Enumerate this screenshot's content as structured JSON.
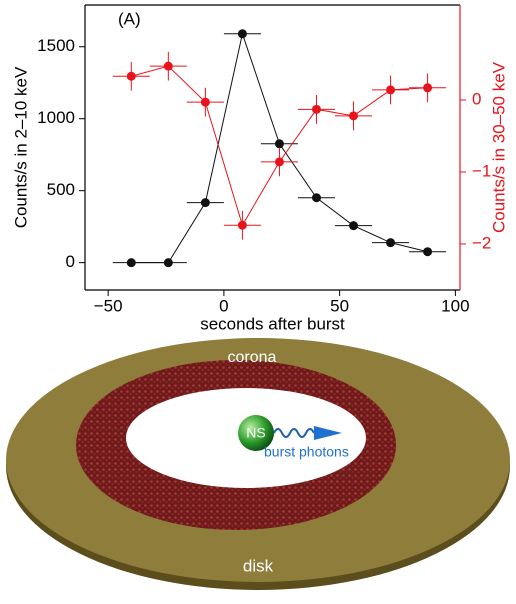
{
  "chart_data": {
    "type": "line",
    "annotation": "(A)",
    "x_label": "seconds after burst",
    "y_label": "Counts/s in 2–10 keV",
    "y2_label": "Counts/s in 30–50 keV",
    "x": [
      -40,
      -24,
      -8,
      8,
      24,
      40,
      56,
      72,
      88
    ],
    "xlim": [
      -60,
      102
    ],
    "xticks": [
      {
        "value": -50,
        "label": "−50"
      },
      0,
      50,
      100
    ],
    "ylim": [
      -190,
      1790
    ],
    "yticks": [
      0,
      500,
      1000,
      1500
    ],
    "y2lim": [
      -2.64,
      1.32
    ],
    "y2ticks": [
      {
        "value": -2,
        "label": "−2"
      },
      {
        "value": -1,
        "label": "−1"
      },
      0
    ],
    "series": [
      {
        "name": "2–10 keV",
        "color": "#111111",
        "xerr": 8,
        "values": [
          0,
          0,
          417,
          1590,
          826,
          451,
          257,
          139,
          76
        ]
      },
      {
        "name": "30–50 keV",
        "color": "#e8141c",
        "axis": "y2",
        "xerr": 8,
        "values": [
          0.33,
          0.47,
          -0.03,
          -1.74,
          -0.86,
          -0.13,
          -0.22,
          0.14,
          0.17
        ],
        "yerr": [
          0.2,
          0.2,
          0.2,
          0.2,
          0.2,
          0.2,
          0.2,
          0.2,
          0.2
        ]
      }
    ]
  },
  "diagram": {
    "corona": "corona",
    "star": "NS",
    "photons": "burst photons",
    "disk": "disk"
  }
}
